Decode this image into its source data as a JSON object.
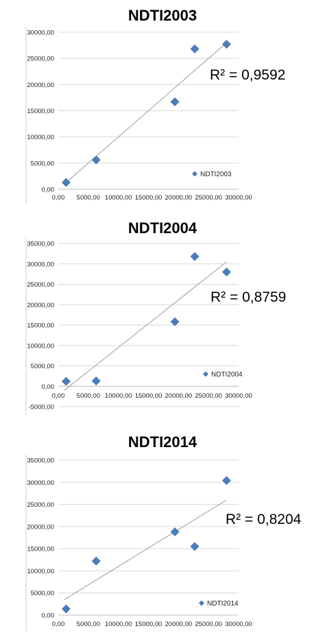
{
  "chart_data": [
    {
      "type": "scatter",
      "title": "NDTI2003",
      "xlim": [
        0,
        30000
      ],
      "ylim": [
        0,
        30000
      ],
      "x_ticks": [
        "0,00",
        "5000,00",
        "10000,00",
        "15000,00",
        "20000,00",
        "25000,00",
        "30000,00"
      ],
      "y_ticks": [
        "0,00",
        "5000,00",
        "10000,00",
        "15000,00",
        "20000,00",
        "25000,00",
        "30000,00"
      ],
      "series": [
        {
          "name": "NDTI2003",
          "x": [
            1300,
            6300,
            19400,
            22700,
            28000
          ],
          "y": [
            1300,
            5600,
            16700,
            26800,
            27700
          ]
        }
      ],
      "trendline": {
        "x1": 1000,
        "y1": 1000,
        "x2": 28000,
        "y2": 28000
      },
      "r2_label": "R² = 0,9592",
      "grid": true,
      "legend": "bottom-right",
      "colors": {
        "marker": "#4a7ebb",
        "trend": "#9a9a9a",
        "grid": "#d9d9d9"
      }
    },
    {
      "type": "scatter",
      "title": "NDTI2004",
      "xlim": [
        0,
        30000
      ],
      "ylim": [
        -5000,
        35000
      ],
      "x_ticks": [
        "0,00",
        "5000,00",
        "10000,00",
        "15000,00",
        "20000,00",
        "25000,00",
        "30000,00"
      ],
      "y_ticks": [
        "-5000,00",
        "0,00",
        "5000,00",
        "10000,00",
        "15000,00",
        "20000,00",
        "25000,00",
        "30000,00",
        "35000,00"
      ],
      "series": [
        {
          "name": "NDTI2004",
          "x": [
            1300,
            6300,
            19400,
            22700,
            28000
          ],
          "y": [
            1200,
            1300,
            15800,
            31800,
            28000
          ]
        }
      ],
      "trendline": {
        "x1": 1000,
        "y1": -1000,
        "x2": 28000,
        "y2": 30500
      },
      "r2_label": "R² = 0,8759",
      "grid": true,
      "legend": "bottom-right",
      "colors": {
        "marker": "#4a7ebb",
        "trend": "#9a9a9a",
        "grid": "#d9d9d9"
      }
    },
    {
      "type": "scatter",
      "title": "NDTI2014",
      "xlim": [
        0,
        30000
      ],
      "ylim": [
        0,
        35000
      ],
      "x_ticks": [
        "0,00",
        "5000,00",
        "10000,00",
        "15000,00",
        "20000,00",
        "25000,00",
        "30000,00"
      ],
      "y_ticks": [
        "0,00",
        "5000,00",
        "10000,00",
        "15000,00",
        "20000,00",
        "25000,00",
        "30000,00",
        "35000,00"
      ],
      "series": [
        {
          "name": "NDTI2014",
          "x": [
            1300,
            6300,
            19400,
            22700,
            28000
          ],
          "y": [
            1400,
            12200,
            18800,
            15500,
            30400
          ]
        }
      ],
      "trendline": {
        "x1": 1000,
        "y1": 3500,
        "x2": 28000,
        "y2": 26000
      },
      "r2_label": "R² = 0,8204",
      "grid": true,
      "legend": "bottom-right",
      "colors": {
        "marker": "#4a7ebb",
        "trend": "#9a9a9a",
        "grid": "#d9d9d9"
      }
    }
  ]
}
